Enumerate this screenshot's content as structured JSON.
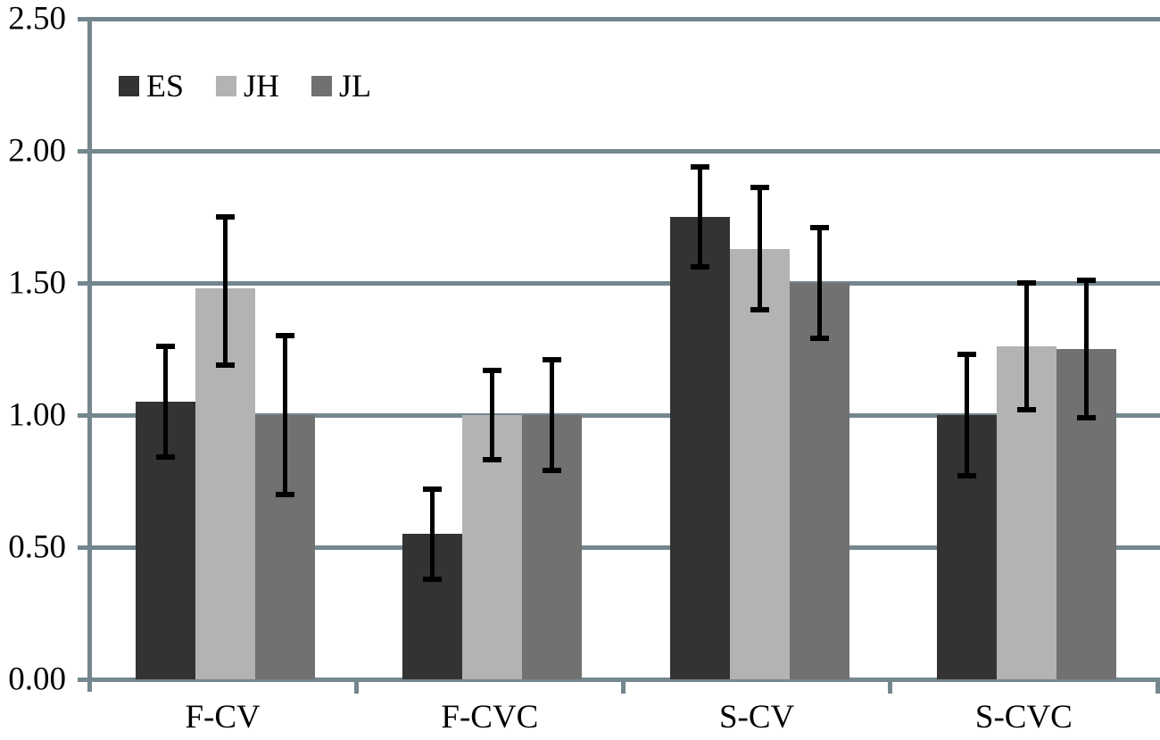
{
  "chart_data": {
    "type": "bar",
    "title": "",
    "categories": [
      "F-CV",
      "F-CVC",
      "S-CV",
      "S-CVC"
    ],
    "series": [
      {
        "name": "ES",
        "color": "#333333",
        "values": [
          1.05,
          0.55,
          1.75,
          1.0
        ],
        "error_low": [
          0.84,
          0.38,
          1.56,
          0.77
        ],
        "error_high": [
          1.26,
          0.72,
          1.94,
          1.23
        ]
      },
      {
        "name": "JH",
        "color": "#b3b3b3",
        "values": [
          1.48,
          1.0,
          1.63,
          1.26
        ],
        "error_low": [
          1.19,
          0.83,
          1.4,
          1.02
        ],
        "error_high": [
          1.75,
          1.17,
          1.86,
          1.5
        ]
      },
      {
        "name": "JL",
        "color": "#717171",
        "values": [
          1.0,
          1.0,
          1.5,
          1.25
        ],
        "error_low": [
          0.7,
          0.79,
          1.29,
          0.99
        ],
        "error_high": [
          1.3,
          1.21,
          1.71,
          1.51
        ]
      }
    ],
    "xlabel": "",
    "ylabel": "",
    "y_axis": {
      "min": 0.0,
      "max": 2.5,
      "step": 0.5,
      "tick_labels": [
        "0.00",
        "0.50",
        "1.00",
        "1.50",
        "2.00",
        "2.50"
      ]
    },
    "grid": true,
    "legend_position": "top-left-inside",
    "colors": {
      "axis_and_grid": "#74878e",
      "error_bar": "#000000",
      "text": "#000000",
      "background": "#ffffff"
    }
  }
}
